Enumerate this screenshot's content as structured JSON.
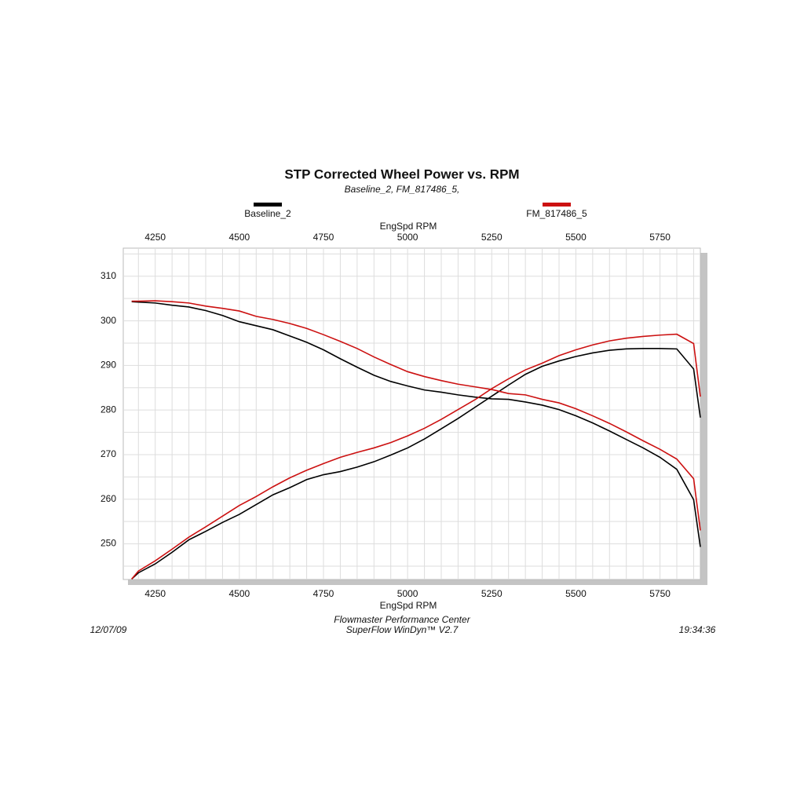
{
  "chart_data": {
    "type": "line",
    "title": "STP Corrected Wheel Power vs. RPM",
    "subtitle": "Baseline_2, FM_817486_5,",
    "x_label_top": "EngSpd  RPM",
    "x_label": "EngSpd  RPM",
    "footer_lines": [
      "Flowmaster Performance Center",
      "SuperFlow WinDyn™ V2.7"
    ],
    "date": "12/07/09",
    "time": "19:34:36",
    "xlim": [
      4155,
      5870
    ],
    "ylim": [
      242,
      316.3
    ],
    "xticks": [
      4250,
      4500,
      4750,
      5000,
      5250,
      5500,
      5750
    ],
    "yticks": [
      250,
      260,
      270,
      280,
      290,
      300,
      310
    ],
    "xgrid": [
      4200,
      4250,
      4300,
      4350,
      4400,
      4450,
      4500,
      4550,
      4600,
      4650,
      4700,
      4750,
      4800,
      4850,
      4900,
      4950,
      5000,
      5050,
      5100,
      5150,
      5200,
      5250,
      5300,
      5350,
      5400,
      5450,
      5500,
      5550,
      5600,
      5650,
      5700,
      5750,
      5800,
      5850
    ],
    "ygrid": [
      245,
      250,
      255,
      260,
      265,
      270,
      275,
      280,
      285,
      290,
      295,
      300,
      305,
      310,
      315
    ],
    "grid": true,
    "x": [
      4180,
      4200,
      4250,
      4300,
      4350,
      4400,
      4450,
      4500,
      4550,
      4600,
      4650,
      4700,
      4750,
      4800,
      4850,
      4900,
      4950,
      5000,
      5050,
      5100,
      5150,
      5200,
      5250,
      5300,
      5350,
      5400,
      5450,
      5500,
      5550,
      5600,
      5650,
      5700,
      5750,
      5800,
      5850,
      5870
    ],
    "series": [
      {
        "name": "Baseline_2",
        "color": "#000000",
        "lines": [
          {
            "values": [
              304.3,
              304.2,
              304.0,
              303.5,
              303.1,
              302.3,
              301.2,
              299.8,
              298.9,
              298.0,
              296.6,
              295.2,
              293.5,
              291.5,
              289.6,
              287.8,
              286.4,
              285.4,
              284.5,
              284.0,
              283.4,
              282.9,
              282.5,
              282.4,
              281.8,
              281.1,
              280.1,
              278.7,
              277.1,
              275.3,
              273.4,
              271.5,
              269.4,
              266.7,
              259.9,
              249.3
            ]
          },
          {
            "values": [
              242.1,
              243.5,
              245.5,
              248.1,
              250.9,
              252.8,
              254.8,
              256.6,
              258.8,
              261.0,
              262.6,
              264.4,
              265.5,
              266.2,
              267.2,
              268.4,
              269.9,
              271.5,
              273.5,
              275.8,
              278.1,
              280.6,
              283.1,
              285.6,
              288.0,
              289.8,
              291.0,
              292.0,
              292.8,
              293.4,
              293.7,
              293.8,
              293.8,
              293.7,
              289.2,
              278.3
            ]
          }
        ]
      },
      {
        "name": "FM_817486_5",
        "color": "#cc1111",
        "lines": [
          {
            "values": [
              304.4,
              304.4,
              304.5,
              304.3,
              304.0,
              303.3,
              302.8,
              302.2,
              301.0,
              300.3,
              299.4,
              298.3,
              296.9,
              295.4,
              293.8,
              291.9,
              290.2,
              288.6,
              287.5,
              286.6,
              285.8,
              285.2,
              284.6,
              283.7,
              283.4,
              282.4,
              281.6,
              280.3,
              278.7,
              277.0,
              275.1,
              273.1,
              271.2,
              269.0,
              264.6,
              253.0
            ]
          },
          {
            "values": [
              242.1,
              243.9,
              246.2,
              248.8,
              251.5,
              253.8,
              256.2,
              258.6,
              260.6,
              262.8,
              264.8,
              266.5,
              268.0,
              269.4,
              270.5,
              271.5,
              272.7,
              274.2,
              275.9,
              277.9,
              280.1,
              282.3,
              284.8,
              287.0,
              289.0,
              290.5,
              292.2,
              293.5,
              294.6,
              295.5,
              296.1,
              296.5,
              296.8,
              297.0,
              294.9,
              283.0
            ]
          }
        ]
      }
    ]
  }
}
